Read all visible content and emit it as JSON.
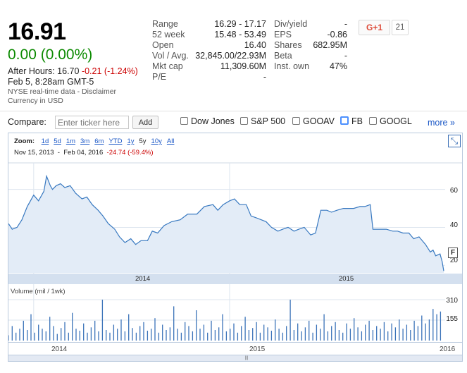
{
  "quote": {
    "price": "16.91",
    "change": "0.00 (0.00%)",
    "after_hours_label": "After Hours: 16.70",
    "after_hours_change": "-0.21 (-1.24%)",
    "timestamp": "Feb 5, 8:28am GMT-5",
    "source": "NYSE real-time data - Disclaimer",
    "currency": "Currency in USD"
  },
  "stats_left": [
    {
      "key": "Range",
      "value": "16.29 - 17.17"
    },
    {
      "key": "52 week",
      "value": "15.48 - 53.49"
    },
    {
      "key": "Open",
      "value": "16.40"
    },
    {
      "key": "Vol / Avg.",
      "value": "32,845.00/22.93M"
    },
    {
      "key": "Mkt cap",
      "value": "11,309.60M"
    },
    {
      "key": "P/E",
      "value": "-"
    }
  ],
  "stats_right": [
    {
      "key": "Div/yield",
      "value": "-"
    },
    {
      "key": "EPS",
      "value": "-0.86"
    },
    {
      "key": "Shares",
      "value": "682.95M"
    },
    {
      "key": "Beta",
      "value": "-"
    },
    {
      "key": "Inst. own",
      "value": "47%"
    }
  ],
  "social": {
    "gplus_label": "G+1",
    "gplus_count": "21"
  },
  "compare": {
    "label": "Compare:",
    "placeholder": "Enter ticker here",
    "add_label": "Add",
    "options": [
      "Dow Jones",
      "S&P 500",
      "GOOAV",
      "FB",
      "GOOGL"
    ],
    "more_label": "more »"
  },
  "zoom": {
    "label": "Zoom:",
    "options": [
      "1d",
      "5d",
      "1m",
      "3m",
      "6m",
      "YTD",
      "1y",
      "5y",
      "10y",
      "All"
    ],
    "selected": "5y",
    "start_date": "Nov 15, 2013",
    "sep": "-",
    "end_date": "Feb 04, 2016",
    "range_change": "-24.74 (-59.4%)"
  },
  "chart_labels": {
    "y_ticks": [
      "60",
      "40",
      "20"
    ],
    "x_ticks": [
      "2014",
      "2015"
    ],
    "volume_label": "Volume (mil / 1wk)",
    "volume_ticks": [
      "310",
      "155"
    ],
    "nav_ticks": [
      "2014",
      "2015",
      "2016"
    ],
    "flag_label": "F",
    "expand_icon": "⤡",
    "scroll_thumb": "|||"
  },
  "chart_data": {
    "type": "area",
    "x_range": [
      "2013-11-15",
      "2016-02-04"
    ],
    "ylim": [
      16,
      74
    ],
    "price_points": [
      [
        "2013-11-15",
        42
      ],
      [
        "2013-11-22",
        39
      ],
      [
        "2013-12-01",
        40
      ],
      [
        "2013-12-10",
        44
      ],
      [
        "2013-12-20",
        51
      ],
      [
        "2014-01-01",
        57
      ],
      [
        "2014-01-10",
        54
      ],
      [
        "2014-01-20",
        59
      ],
      [
        "2014-01-25",
        67
      ],
      [
        "2014-02-01",
        62
      ],
      [
        "2014-02-05",
        60
      ],
      [
        "2014-02-12",
        62
      ],
      [
        "2014-02-20",
        63
      ],
      [
        "2014-02-28",
        61
      ],
      [
        "2014-03-10",
        62
      ],
      [
        "2014-03-20",
        58
      ],
      [
        "2014-04-01",
        55
      ],
      [
        "2014-04-10",
        56
      ],
      [
        "2014-04-20",
        52
      ],
      [
        "2014-05-01",
        49
      ],
      [
        "2014-05-10",
        46
      ],
      [
        "2014-05-20",
        42
      ],
      [
        "2014-06-01",
        39
      ],
      [
        "2014-06-10",
        35
      ],
      [
        "2014-06-20",
        32
      ],
      [
        "2014-07-01",
        34
      ],
      [
        "2014-07-10",
        31
      ],
      [
        "2014-07-20",
        33
      ],
      [
        "2014-08-01",
        33
      ],
      [
        "2014-08-10",
        38
      ],
      [
        "2014-08-20",
        37
      ],
      [
        "2014-09-01",
        41
      ],
      [
        "2014-09-15",
        43
      ],
      [
        "2014-10-01",
        44
      ],
      [
        "2014-10-15",
        47
      ],
      [
        "2014-11-01",
        47
      ],
      [
        "2014-11-15",
        51
      ],
      [
        "2014-12-01",
        52
      ],
      [
        "2014-12-10",
        49
      ],
      [
        "2014-12-20",
        52
      ],
      [
        "2015-01-01",
        54
      ],
      [
        "2015-01-10",
        55
      ],
      [
        "2015-01-20",
        52
      ],
      [
        "2015-02-01",
        52
      ],
      [
        "2015-02-10",
        46
      ],
      [
        "2015-02-20",
        45
      ],
      [
        "2015-03-01",
        44
      ],
      [
        "2015-03-10",
        43
      ],
      [
        "2015-03-20",
        40
      ],
      [
        "2015-04-01",
        38
      ],
      [
        "2015-04-10",
        39
      ],
      [
        "2015-04-20",
        40
      ],
      [
        "2015-05-01",
        38
      ],
      [
        "2015-05-10",
        39
      ],
      [
        "2015-05-20",
        40
      ],
      [
        "2015-06-01",
        36
      ],
      [
        "2015-06-10",
        37
      ],
      [
        "2015-06-20",
        49
      ],
      [
        "2015-07-01",
        49
      ],
      [
        "2015-07-10",
        48
      ],
      [
        "2015-07-20",
        49
      ],
      [
        "2015-08-01",
        50
      ],
      [
        "2015-08-20",
        50
      ],
      [
        "2015-09-01",
        51
      ],
      [
        "2015-09-10",
        51
      ],
      [
        "2015-09-20",
        52
      ],
      [
        "2015-09-25",
        39
      ],
      [
        "2015-10-05",
        39
      ],
      [
        "2015-10-20",
        39
      ],
      [
        "2015-11-01",
        38
      ],
      [
        "2015-11-10",
        38
      ],
      [
        "2015-11-20",
        37
      ],
      [
        "2015-12-01",
        37
      ],
      [
        "2015-12-10",
        34
      ],
      [
        "2015-12-20",
        35
      ],
      [
        "2016-01-01",
        31
      ],
      [
        "2016-01-10",
        27
      ],
      [
        "2016-01-15",
        28
      ],
      [
        "2016-01-20",
        25
      ],
      [
        "2016-01-28",
        26
      ],
      [
        "2016-02-01",
        22
      ],
      [
        "2016-02-04",
        17
      ]
    ],
    "volume_ylim": [
      0,
      310
    ],
    "volume_start": "2013-11-15",
    "volume_step_days": 7,
    "volume_values": [
      40,
      110,
      60,
      90,
      150,
      80,
      200,
      60,
      120,
      90,
      70,
      180,
      110,
      50,
      95,
      140,
      60,
      210,
      90,
      75,
      130,
      60,
      100,
      150,
      70,
      310,
      80,
      60,
      120,
      90,
      160,
      70,
      200,
      95,
      60,
      110,
      140,
      75,
      90,
      170,
      60,
      120,
      80,
      100,
      260,
      90,
      60,
      140,
      110,
      70,
      230,
      90,
      120,
      60,
      150,
      80,
      100,
      200,
      70,
      90,
      130,
      60,
      110,
      180,
      80,
      95,
      140,
      60,
      120,
      100,
      75,
      160,
      90,
      60,
      110,
      310,
      80,
      130,
      70,
      100,
      150,
      60,
      120,
      90,
      200,
      70,
      110,
      140,
      80,
      60,
      130,
      90,
      170,
      100,
      70,
      120,
      150,
      80,
      110,
      90,
      140,
      70,
      130,
      100,
      160,
      90,
      120,
      80,
      150,
      110,
      190,
      130,
      160,
      240,
      200,
      220
    ]
  },
  "colors": {
    "up": "#0b8a00",
    "down": "#cc0000",
    "line": "#3778c0",
    "area": "#e3ecf7",
    "volume": "#3b73b9",
    "grid": "#dde5ef"
  }
}
